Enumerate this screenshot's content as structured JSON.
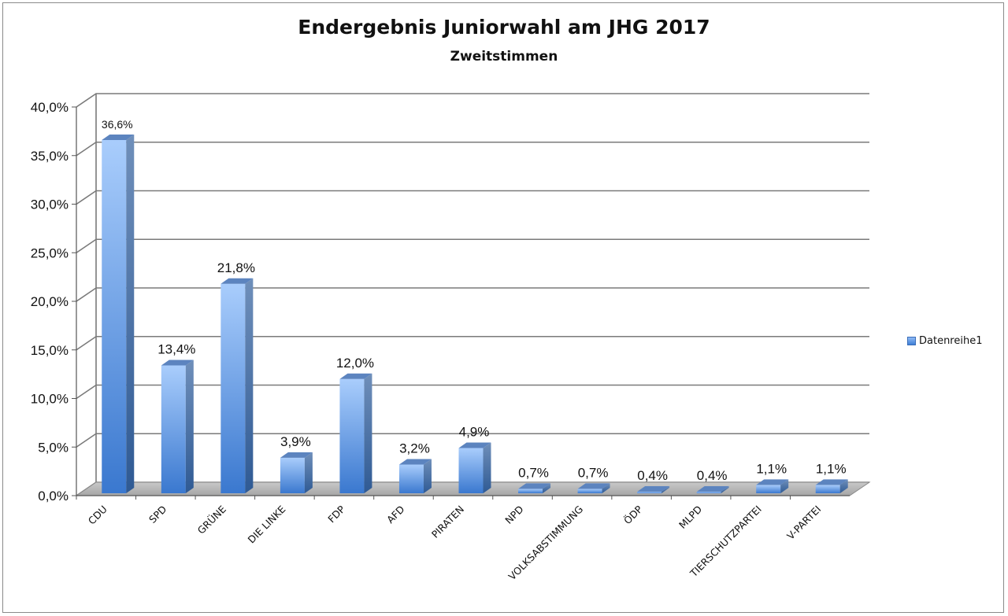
{
  "chart_data": {
    "type": "bar",
    "title": "Endergebnis Juniorwahl am JHG 2017",
    "subtitle": "Zweitstimmen",
    "xlabel": "",
    "ylabel": "",
    "ylim": [
      0,
      40
    ],
    "yticks": [
      "0,0%",
      "5,0%",
      "10,0%",
      "15,0%",
      "20,0%",
      "25,0%",
      "30,0%",
      "35,0%",
      "40,0%"
    ],
    "categories": [
      "CDU",
      "SPD",
      "GRÜNE",
      "DIE LINKE",
      "FDP",
      "AFD",
      "PIRATEN",
      "NPD",
      "VOLKSABSTIMMUNG",
      "ÖDP",
      "MLPD",
      "TIERSCHUTZPARTEI",
      "V-PARTEI"
    ],
    "series": [
      {
        "name": "Datenreihe1",
        "values": [
          36.6,
          13.4,
          21.8,
          3.9,
          12.0,
          3.2,
          4.9,
          0.7,
          0.7,
          0.4,
          0.4,
          1.1,
          1.1
        ],
        "labels": [
          "36,6%",
          "13,4%",
          "21,8%",
          "3,9%",
          "12,0%",
          "3,2%",
          "4,9%",
          "0,7%",
          "0,7%",
          "0,4%",
          "0,4%",
          "1,1%",
          "1,1%"
        ]
      }
    ],
    "grid": true,
    "legend": "right",
    "colors": {
      "bar_light": "#a9cdfc",
      "bar_dark": "#3a78cf",
      "bar_side": "#5b7fae",
      "floor": "#b4b4b4"
    }
  }
}
